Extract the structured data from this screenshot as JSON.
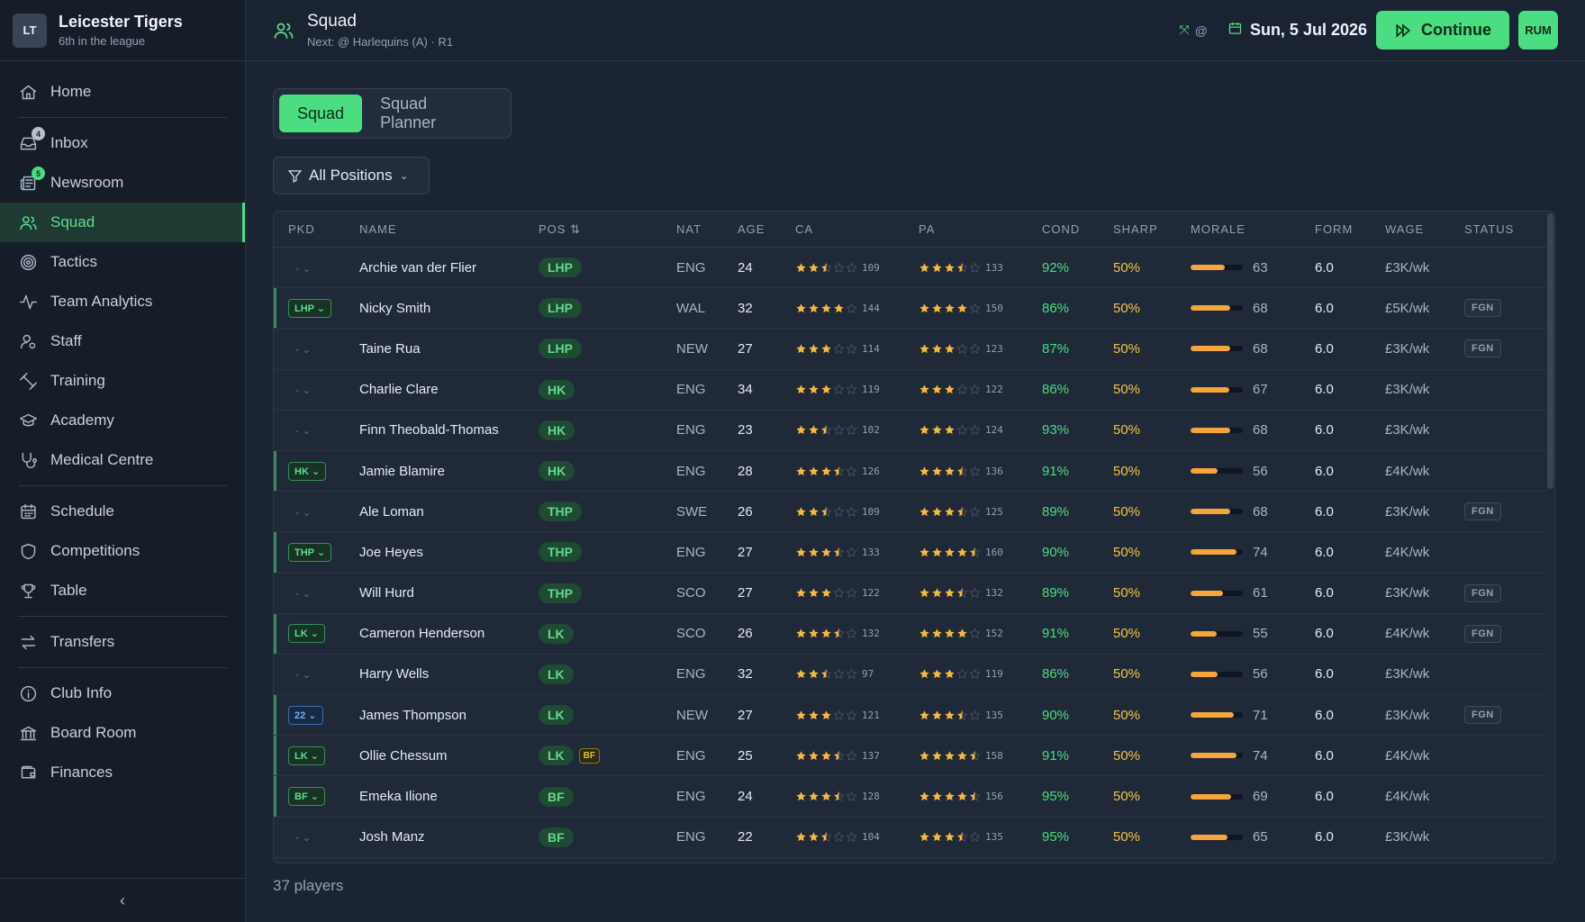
{
  "club": {
    "logo": "LT",
    "name": "Leicester Tigers",
    "position": "6th in the league"
  },
  "nav": [
    {
      "label": "Home",
      "icon": "home-icon"
    },
    {
      "sep": true
    },
    {
      "label": "Inbox",
      "icon": "inbox-icon",
      "badge": "4",
      "badge_color": "grey"
    },
    {
      "label": "Newsroom",
      "icon": "newspaper-icon",
      "badge": "5",
      "badge_color": "green"
    },
    {
      "label": "Squad",
      "icon": "users-icon",
      "active": true
    },
    {
      "label": "Tactics",
      "icon": "target-icon"
    },
    {
      "label": "Team Analytics",
      "icon": "activity-icon"
    },
    {
      "label": "Staff",
      "icon": "staff-icon"
    },
    {
      "label": "Training",
      "icon": "dumbbell-icon"
    },
    {
      "label": "Academy",
      "icon": "graduation-cap-icon"
    },
    {
      "label": "Medical Centre",
      "icon": "stethoscope-icon"
    },
    {
      "sep": true
    },
    {
      "label": "Schedule",
      "icon": "calendar-icon"
    },
    {
      "label": "Competitions",
      "icon": "shield-icon"
    },
    {
      "label": "Table",
      "icon": "trophy-icon"
    },
    {
      "sep": true
    },
    {
      "label": "Transfers",
      "icon": "transfer-arrows-icon"
    },
    {
      "sep": true
    },
    {
      "label": "Club Info",
      "icon": "info-icon"
    },
    {
      "label": "Board Room",
      "icon": "bank-icon"
    },
    {
      "label": "Finances",
      "icon": "wallet-icon"
    }
  ],
  "header": {
    "title": "Squad",
    "subtitle": "Next: @ Harlequins (A) · R1",
    "mini_at": "@",
    "date": "Sun, 5 Jul 2026",
    "continue_label": "Continue",
    "user": "RUM"
  },
  "tabs": [
    {
      "label": "Squad",
      "active": true
    },
    {
      "label": "Squad Planner",
      "active": false
    }
  ],
  "filter_label": "All Positions",
  "columns": [
    "PKD",
    "NAME",
    "POS ⇅",
    "NAT",
    "AGE",
    "CA",
    "PA",
    "COND",
    "SHARP",
    "MORALE",
    "FORM",
    "WAGE",
    "STATUS"
  ],
  "players": [
    {
      "pkd": "",
      "name": "Archie van der Flier",
      "pos": "LHP",
      "nat": "ENG",
      "age": "24",
      "ca_stars": 2.5,
      "ca": "109",
      "pa_stars": 3.5,
      "pa": "133",
      "cond": "92%",
      "sharp": "50%",
      "morale": "63",
      "form": "6.0",
      "wage": "£3K/wk",
      "status": ""
    },
    {
      "pkd": "LHP",
      "name": "Nicky Smith",
      "pos": "LHP",
      "nat": "WAL",
      "age": "32",
      "ca_stars": 4,
      "ca": "144",
      "pa_stars": 4,
      "pa": "150",
      "cond": "86%",
      "sharp": "50%",
      "morale": "68",
      "form": "6.0",
      "wage": "£5K/wk",
      "status": "FGN"
    },
    {
      "pkd": "",
      "name": "Taine Rua",
      "pos": "LHP",
      "nat": "NEW",
      "age": "27",
      "ca_stars": 3,
      "ca": "114",
      "pa_stars": 3,
      "pa": "123",
      "cond": "87%",
      "sharp": "50%",
      "morale": "68",
      "form": "6.0",
      "wage": "£3K/wk",
      "status": "FGN"
    },
    {
      "pkd": "",
      "name": "Charlie Clare",
      "pos": "HK",
      "nat": "ENG",
      "age": "34",
      "ca_stars": 3,
      "ca": "119",
      "pa_stars": 3,
      "pa": "122",
      "cond": "86%",
      "sharp": "50%",
      "morale": "67",
      "form": "6.0",
      "wage": "£3K/wk",
      "status": ""
    },
    {
      "pkd": "",
      "name": "Finn Theobald-Thomas",
      "pos": "HK",
      "nat": "ENG",
      "age": "23",
      "ca_stars": 2.5,
      "ca": "102",
      "pa_stars": 3,
      "pa": "124",
      "cond": "93%",
      "sharp": "50%",
      "morale": "68",
      "form": "6.0",
      "wage": "£3K/wk",
      "status": ""
    },
    {
      "pkd": "HK",
      "name": "Jamie Blamire",
      "pos": "HK",
      "nat": "ENG",
      "age": "28",
      "ca_stars": 3.5,
      "ca": "126",
      "pa_stars": 3.5,
      "pa": "136",
      "cond": "91%",
      "sharp": "50%",
      "morale": "56",
      "form": "6.0",
      "wage": "£4K/wk",
      "status": ""
    },
    {
      "pkd": "",
      "name": "Ale Loman",
      "pos": "THP",
      "nat": "SWE",
      "age": "26",
      "ca_stars": 2.5,
      "ca": "109",
      "pa_stars": 3.5,
      "pa": "125",
      "cond": "89%",
      "sharp": "50%",
      "morale": "68",
      "form": "6.0",
      "wage": "£3K/wk",
      "status": "FGN"
    },
    {
      "pkd": "THP",
      "name": "Joe Heyes",
      "pos": "THP",
      "nat": "ENG",
      "age": "27",
      "ca_stars": 3.5,
      "ca": "133",
      "pa_stars": 4.5,
      "pa": "160",
      "cond": "90%",
      "sharp": "50%",
      "morale": "74",
      "form": "6.0",
      "wage": "£4K/wk",
      "status": ""
    },
    {
      "pkd": "",
      "name": "Will Hurd",
      "pos": "THP",
      "nat": "SCO",
      "age": "27",
      "ca_stars": 3,
      "ca": "122",
      "pa_stars": 3.5,
      "pa": "132",
      "cond": "89%",
      "sharp": "50%",
      "morale": "61",
      "form": "6.0",
      "wage": "£3K/wk",
      "status": "FGN"
    },
    {
      "pkd": "LK",
      "name": "Cameron Henderson",
      "pos": "LK",
      "nat": "SCO",
      "age": "26",
      "ca_stars": 3.5,
      "ca": "132",
      "pa_stars": 4,
      "pa": "152",
      "cond": "91%",
      "sharp": "50%",
      "morale": "55",
      "form": "6.0",
      "wage": "£4K/wk",
      "status": "FGN"
    },
    {
      "pkd": "",
      "name": "Harry Wells",
      "pos": "LK",
      "nat": "ENG",
      "age": "32",
      "ca_stars": 2.5,
      "ca": "97",
      "pa_stars": 3,
      "pa": "119",
      "cond": "86%",
      "sharp": "50%",
      "morale": "56",
      "form": "6.0",
      "wage": "£3K/wk",
      "status": ""
    },
    {
      "pkd": "22",
      "pkd_blue": true,
      "name": "James Thompson",
      "pos": "LK",
      "nat": "NEW",
      "age": "27",
      "ca_stars": 3,
      "ca": "121",
      "pa_stars": 3.5,
      "pa": "135",
      "cond": "90%",
      "sharp": "50%",
      "morale": "71",
      "form": "6.0",
      "wage": "£3K/wk",
      "status": "FGN"
    },
    {
      "pkd": "LK",
      "name": "Ollie Chessum",
      "pos": "LK",
      "pos_extra": "BF",
      "nat": "ENG",
      "age": "25",
      "ca_stars": 3.5,
      "ca": "137",
      "pa_stars": 4.5,
      "pa": "158",
      "cond": "91%",
      "sharp": "50%",
      "morale": "74",
      "form": "6.0",
      "wage": "£4K/wk",
      "status": ""
    },
    {
      "pkd": "BF",
      "name": "Emeka Ilione",
      "pos": "BF",
      "nat": "ENG",
      "age": "24",
      "ca_stars": 3.5,
      "ca": "128",
      "pa_stars": 4.5,
      "pa": "156",
      "cond": "95%",
      "sharp": "50%",
      "morale": "69",
      "form": "6.0",
      "wage": "£4K/wk",
      "status": ""
    },
    {
      "pkd": "",
      "name": "Josh Manz",
      "pos": "BF",
      "nat": "ENG",
      "age": "22",
      "ca_stars": 2.5,
      "ca": "104",
      "pa_stars": 3.5,
      "pa": "135",
      "cond": "95%",
      "sharp": "50%",
      "morale": "65",
      "form": "6.0",
      "wage": "£3K/wk",
      "status": ""
    }
  ],
  "footer": "37 players",
  "colors": {
    "accent": "#4ade80",
    "star": "#f6b93b",
    "morale_bar": "#f6a53a",
    "sharp": "#f5c542"
  }
}
